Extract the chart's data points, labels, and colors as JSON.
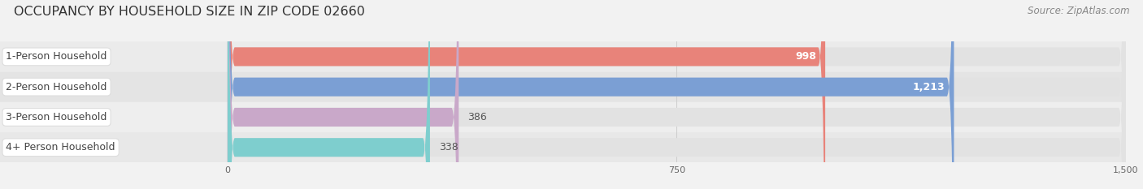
{
  "title": "OCCUPANCY BY HOUSEHOLD SIZE IN ZIP CODE 02660",
  "source": "Source: ZipAtlas.com",
  "categories": [
    "1-Person Household",
    "2-Person Household",
    "3-Person Household",
    "4+ Person Household"
  ],
  "values": [
    998,
    1213,
    386,
    338
  ],
  "bar_colors": [
    "#E8837A",
    "#7B9FD4",
    "#C9A8C9",
    "#7ECECE"
  ],
  "value_text_colors": [
    "#FFFFFF",
    "#FFFFFF",
    "#777777",
    "#777777"
  ],
  "xlim_min": -380,
  "xlim_max": 1500,
  "data_xlim": [
    0,
    1500
  ],
  "xticks": [
    0,
    750,
    1500
  ],
  "background_color": "#F2F2F2",
  "bar_background_color": "#E2E2E2",
  "row_bg_colors": [
    "#EBEBEB",
    "#E5E5E5",
    "#EEEEEE",
    "#E8E8E8"
  ],
  "title_fontsize": 11.5,
  "source_fontsize": 8.5,
  "label_fontsize": 9,
  "value_fontsize": 9,
  "bar_height": 0.62,
  "label_box_color": "#FFFFFF",
  "label_box_edge_color": "#DDDDDD",
  "inside_value_threshold": 500
}
